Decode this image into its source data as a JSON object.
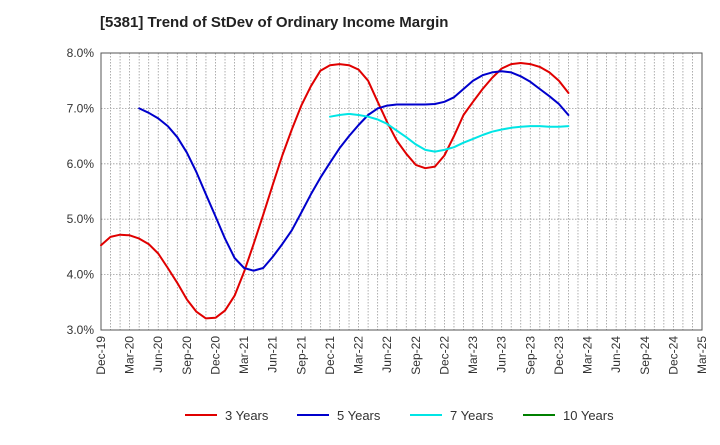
{
  "chart_data": {
    "type": "line",
    "title": "[5381]  Trend of StDev of Ordinary Income Margin",
    "xlabel": "",
    "ylabel": "",
    "ylim": [
      3.0,
      8.0
    ],
    "y_ticks": [
      3.0,
      4.0,
      5.0,
      6.0,
      7.0,
      8.0
    ],
    "y_tick_labels": [
      "3.0%",
      "4.0%",
      "5.0%",
      "6.0%",
      "7.0%",
      "8.0%"
    ],
    "x_tick_labels": [
      "Dec-19",
      "Mar-20",
      "Jun-20",
      "Sep-20",
      "Dec-20",
      "Mar-21",
      "Jun-21",
      "Sep-21",
      "Dec-21",
      "Mar-22",
      "Jun-22",
      "Sep-22",
      "Dec-22",
      "Mar-23",
      "Jun-23",
      "Sep-23",
      "Dec-23",
      "Mar-24",
      "Jun-24",
      "Sep-24",
      "Dec-24",
      "Mar-25"
    ],
    "grid": true,
    "legend_position": "bottom",
    "series": [
      {
        "name": "3 Years",
        "color": "#e00000",
        "points": [
          [
            0,
            4.53
          ],
          [
            1,
            4.68
          ],
          [
            2,
            4.72
          ],
          [
            3,
            4.71
          ],
          [
            4,
            4.65
          ],
          [
            5,
            4.55
          ],
          [
            6,
            4.38
          ],
          [
            7,
            4.12
          ],
          [
            8,
            3.85
          ],
          [
            9,
            3.55
          ],
          [
            10,
            3.33
          ],
          [
            11,
            3.21
          ],
          [
            12,
            3.22
          ],
          [
            13,
            3.35
          ],
          [
            14,
            3.62
          ],
          [
            15,
            4.05
          ],
          [
            16,
            4.55
          ],
          [
            17,
            5.08
          ],
          [
            18,
            5.62
          ],
          [
            19,
            6.15
          ],
          [
            20,
            6.62
          ],
          [
            21,
            7.05
          ],
          [
            22,
            7.4
          ],
          [
            23,
            7.68
          ],
          [
            24,
            7.78
          ],
          [
            25,
            7.8
          ],
          [
            26,
            7.78
          ],
          [
            27,
            7.7
          ],
          [
            28,
            7.5
          ],
          [
            29,
            7.12
          ],
          [
            30,
            6.75
          ],
          [
            31,
            6.42
          ],
          [
            32,
            6.18
          ],
          [
            33,
            5.98
          ],
          [
            34,
            5.92
          ],
          [
            35,
            5.95
          ],
          [
            36,
            6.15
          ],
          [
            37,
            6.5
          ],
          [
            38,
            6.88
          ],
          [
            39,
            7.12
          ],
          [
            40,
            7.35
          ],
          [
            41,
            7.55
          ],
          [
            42,
            7.72
          ],
          [
            43,
            7.8
          ],
          [
            44,
            7.82
          ],
          [
            45,
            7.8
          ],
          [
            46,
            7.75
          ],
          [
            47,
            7.65
          ],
          [
            48,
            7.5
          ],
          [
            49,
            7.28
          ]
        ]
      },
      {
        "name": "5 Years",
        "color": "#0000cc",
        "points": [
          [
            4,
            7.0
          ],
          [
            5,
            6.92
          ],
          [
            6,
            6.82
          ],
          [
            7,
            6.68
          ],
          [
            8,
            6.48
          ],
          [
            9,
            6.2
          ],
          [
            10,
            5.85
          ],
          [
            11,
            5.45
          ],
          [
            12,
            5.05
          ],
          [
            13,
            4.65
          ],
          [
            14,
            4.3
          ],
          [
            15,
            4.12
          ],
          [
            16,
            4.07
          ],
          [
            17,
            4.12
          ],
          [
            18,
            4.32
          ],
          [
            19,
            4.55
          ],
          [
            20,
            4.8
          ],
          [
            21,
            5.12
          ],
          [
            22,
            5.45
          ],
          [
            23,
            5.75
          ],
          [
            24,
            6.02
          ],
          [
            25,
            6.28
          ],
          [
            26,
            6.5
          ],
          [
            27,
            6.7
          ],
          [
            28,
            6.88
          ],
          [
            29,
            7.0
          ],
          [
            30,
            7.05
          ],
          [
            31,
            7.07
          ],
          [
            32,
            7.07
          ],
          [
            33,
            7.07
          ],
          [
            34,
            7.07
          ],
          [
            35,
            7.08
          ],
          [
            36,
            7.12
          ],
          [
            37,
            7.2
          ],
          [
            38,
            7.35
          ],
          [
            39,
            7.5
          ],
          [
            40,
            7.6
          ],
          [
            41,
            7.65
          ],
          [
            42,
            7.67
          ],
          [
            43,
            7.65
          ],
          [
            44,
            7.58
          ],
          [
            45,
            7.48
          ],
          [
            46,
            7.35
          ],
          [
            47,
            7.22
          ],
          [
            48,
            7.08
          ],
          [
            49,
            6.88
          ]
        ]
      },
      {
        "name": "7 Years",
        "color": "#00e5e5",
        "points": [
          [
            24,
            6.85
          ],
          [
            25,
            6.88
          ],
          [
            26,
            6.9
          ],
          [
            27,
            6.88
          ],
          [
            28,
            6.85
          ],
          [
            29,
            6.8
          ],
          [
            30,
            6.72
          ],
          [
            31,
            6.6
          ],
          [
            32,
            6.48
          ],
          [
            33,
            6.35
          ],
          [
            34,
            6.25
          ],
          [
            35,
            6.22
          ],
          [
            36,
            6.25
          ],
          [
            37,
            6.3
          ],
          [
            38,
            6.38
          ],
          [
            39,
            6.45
          ],
          [
            40,
            6.52
          ],
          [
            41,
            6.58
          ],
          [
            42,
            6.62
          ],
          [
            43,
            6.65
          ],
          [
            44,
            6.67
          ],
          [
            45,
            6.68
          ],
          [
            46,
            6.68
          ],
          [
            47,
            6.67
          ],
          [
            48,
            6.67
          ],
          [
            49,
            6.68
          ]
        ]
      },
      {
        "name": "10 Years",
        "color": "#008000",
        "points": []
      }
    ]
  }
}
